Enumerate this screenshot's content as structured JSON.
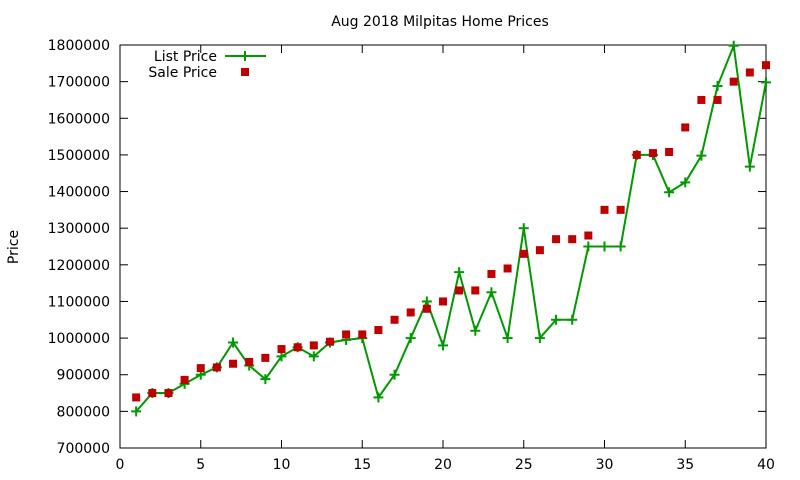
{
  "chart_data": {
    "type": "scatter",
    "title": "Aug 2018 Milpitas Home Prices",
    "xlabel": "",
    "ylabel": "Price",
    "xlim": [
      0,
      40
    ],
    "ylim": [
      700000,
      1800000
    ],
    "xticks": [
      0,
      5,
      10,
      15,
      20,
      25,
      30,
      35,
      40
    ],
    "yticks": [
      700000,
      800000,
      900000,
      1000000,
      1100000,
      1200000,
      1300000,
      1400000,
      1500000,
      1600000,
      1700000,
      1800000
    ],
    "grid": false,
    "legend_position": "top-left",
    "x": [
      1,
      2,
      3,
      4,
      5,
      6,
      7,
      8,
      9,
      10,
      11,
      12,
      13,
      14,
      15,
      16,
      17,
      18,
      19,
      20,
      21,
      22,
      23,
      24,
      25,
      26,
      27,
      28,
      29,
      30,
      31,
      32,
      33,
      34,
      35,
      36,
      37,
      38,
      39,
      40
    ],
    "series": [
      {
        "name": "List Price",
        "style": "line-plus",
        "color": "#009900",
        "values": [
          800000,
          850000,
          850000,
          875000,
          900000,
          920000,
          988000,
          925000,
          888000,
          950000,
          975000,
          950000,
          988000,
          995000,
          1000000,
          838000,
          900000,
          1000000,
          1100000,
          980000,
          1180000,
          1020000,
          1125000,
          1000000,
          1300000,
          1000000,
          1050000,
          1050000,
          1250000,
          1250000,
          1250000,
          1500000,
          1500000,
          1398000,
          1425000,
          1498000,
          1688000,
          1798000,
          1468000,
          1698000
        ]
      },
      {
        "name": "Sale Price",
        "style": "square-points",
        "color": "#c00000",
        "values": [
          838000,
          850000,
          850000,
          886000,
          918000,
          920000,
          930000,
          935000,
          946000,
          970000,
          975000,
          980000,
          990000,
          1010000,
          1010000,
          1022000,
          1050000,
          1070000,
          1080000,
          1100000,
          1130000,
          1130000,
          1175000,
          1190000,
          1230000,
          1240000,
          1270000,
          1270000,
          1280000,
          1350000,
          1350000,
          1500000,
          1505000,
          1508000,
          1575000,
          1650000,
          1650000,
          1700000,
          1725000,
          1745000
        ]
      }
    ]
  }
}
